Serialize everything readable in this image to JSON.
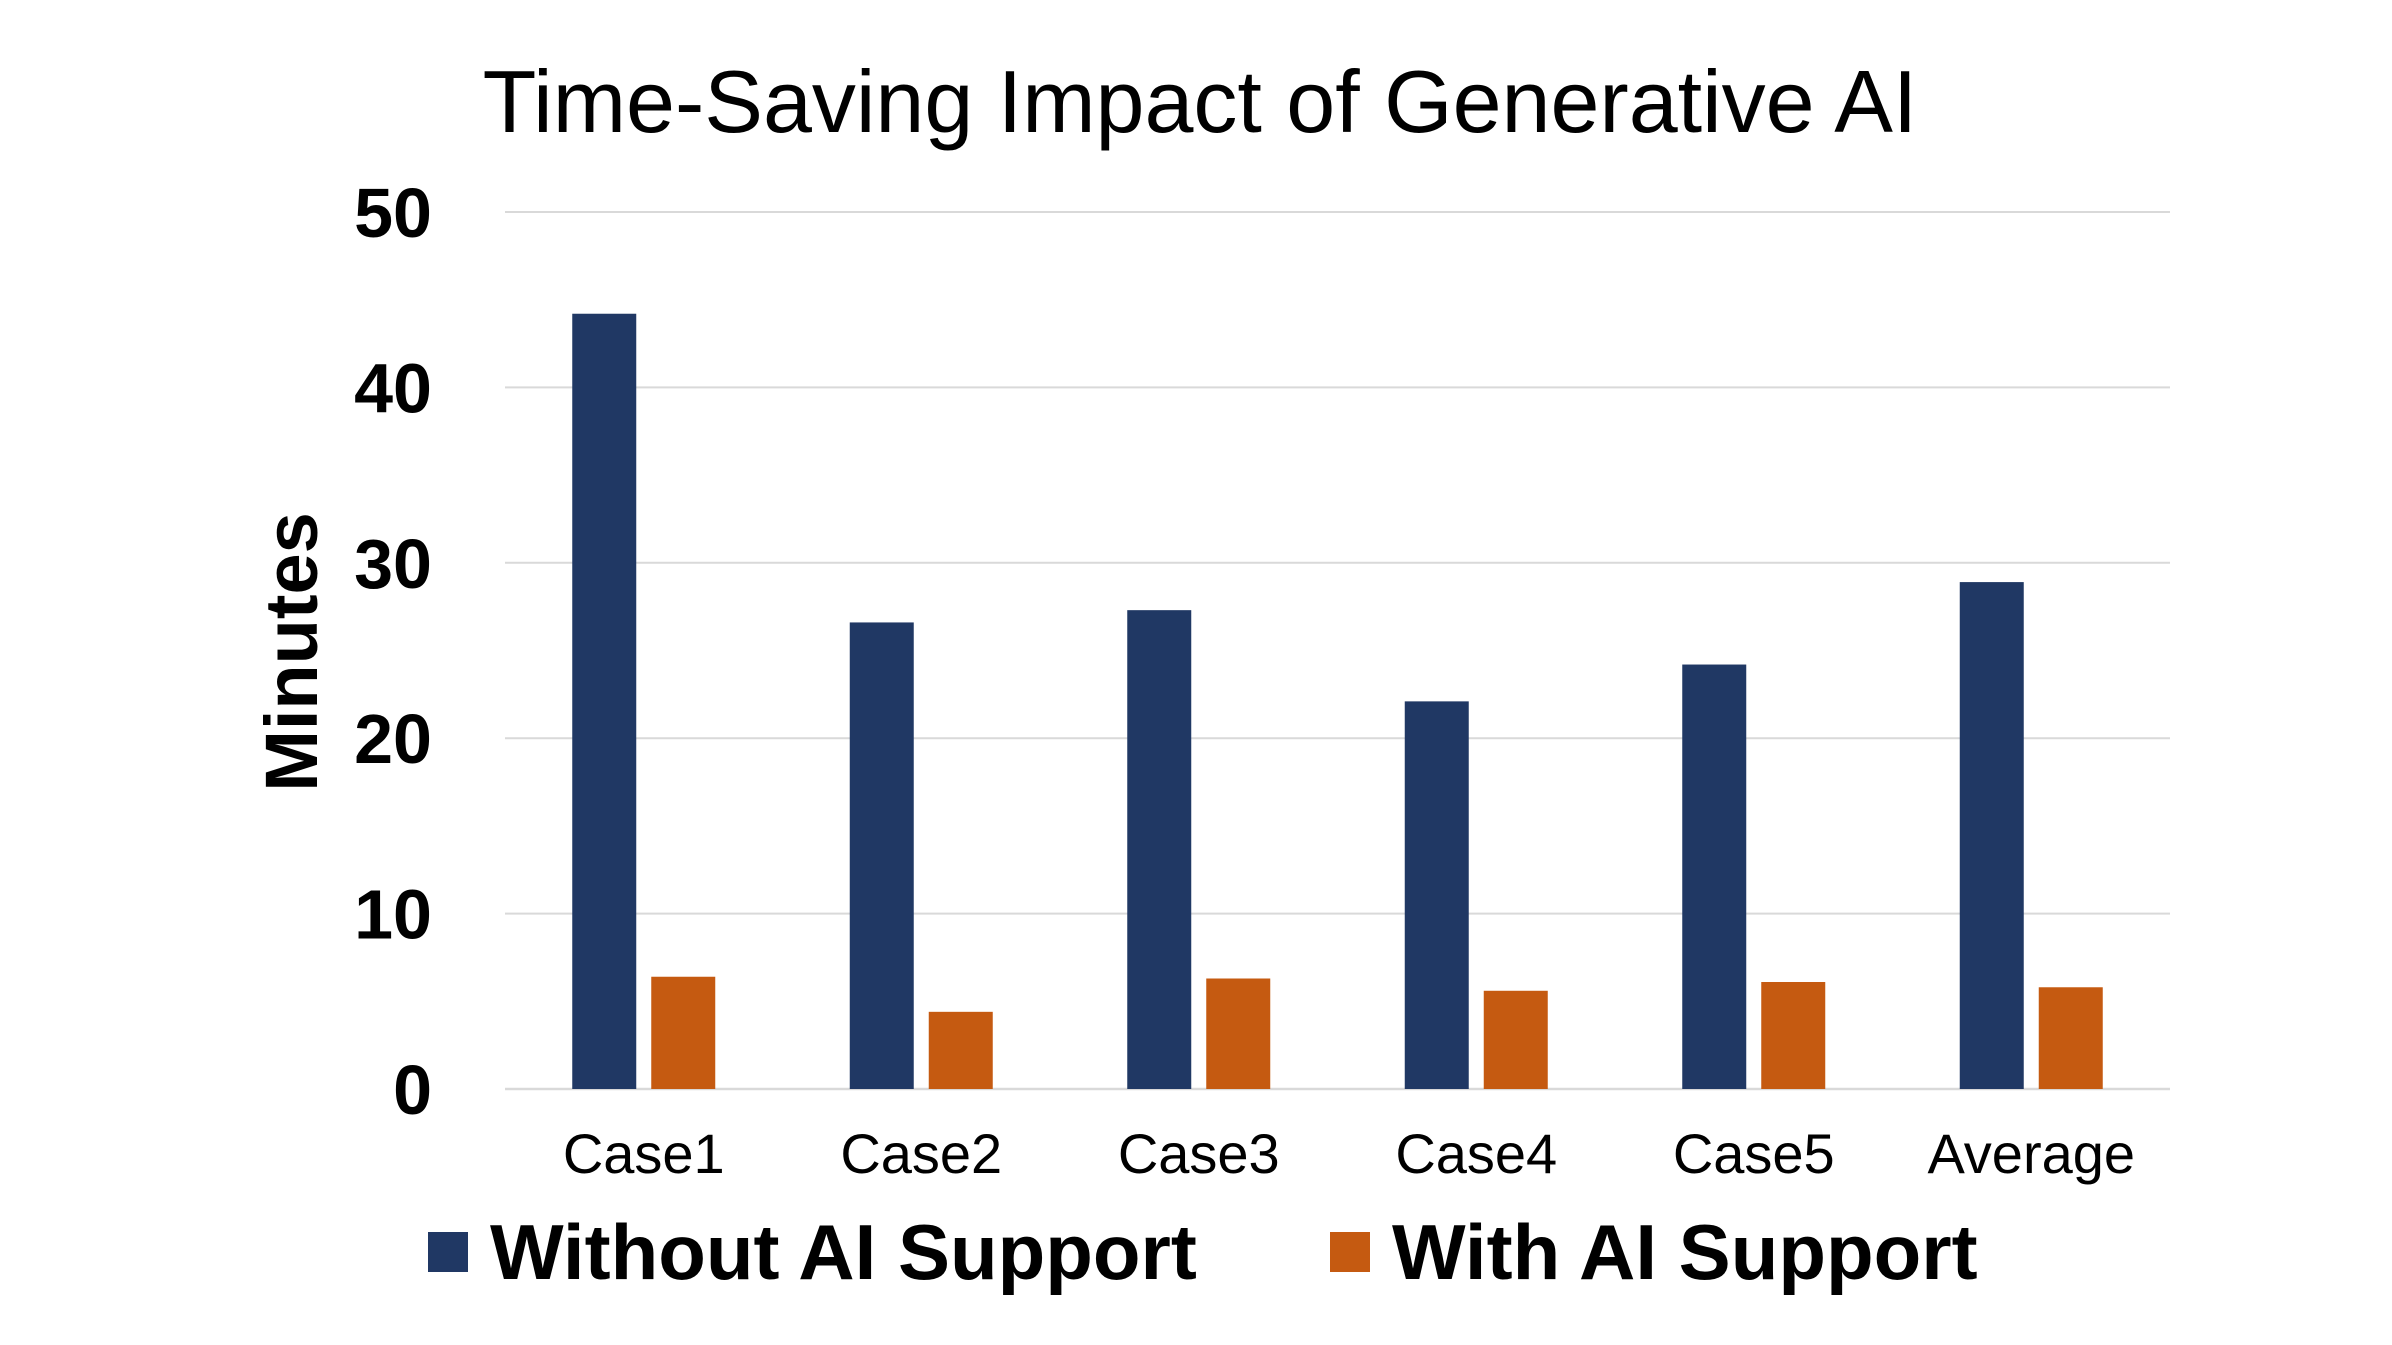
{
  "chart_data": {
    "type": "bar",
    "title": "Time-Saving Impact of Generative AI",
    "xlabel": "",
    "ylabel": "Minutes",
    "ylim": [
      0,
      50
    ],
    "yticks": [
      0,
      10,
      20,
      30,
      40,
      50
    ],
    "grid": true,
    "legend_position": "bottom",
    "categories": [
      "Case1",
      "Case2",
      "Case3",
      "Case4",
      "Case5",
      "Average"
    ],
    "series": [
      {
        "name": "Without AI Support",
        "color": "#203864",
        "values": [
          44.2,
          26.6,
          27.3,
          22.1,
          24.2,
          28.9
        ]
      },
      {
        "name": "With AI Support",
        "color": "#C55A11",
        "values": [
          6.4,
          4.4,
          6.3,
          5.6,
          6.1,
          5.8
        ]
      }
    ]
  }
}
